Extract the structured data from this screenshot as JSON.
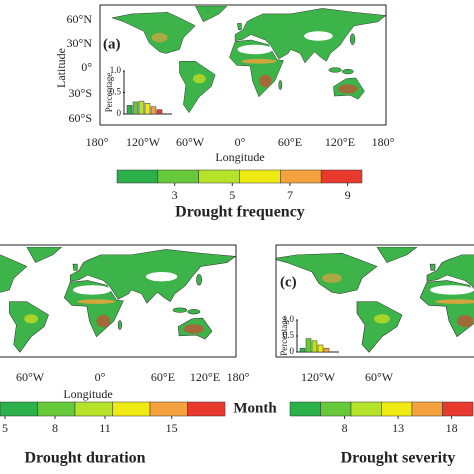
{
  "panels": [
    {
      "label": "(a)",
      "y_axis_label": "Latitude",
      "x_axis_label": "Longitude",
      "y_ticks": [
        "60°N",
        "30°N",
        "0°",
        "30°S",
        "60°S"
      ],
      "x_ticks": [
        "180°",
        "120°W",
        "60°W",
        "0°",
        "60°E",
        "120°E",
        "180°"
      ],
      "inset": {
        "y_axis_label": "Percentage",
        "ylim": [
          0,
          1
        ],
        "yticks": [
          {
            "value": 1,
            "label": "1.0"
          },
          0.5,
          0
        ],
        "values": [
          0.2,
          0.28,
          0.3,
          0.25,
          0.17,
          0.1
        ]
      },
      "colorbar": {
        "lim": [
          1,
          9.5
        ],
        "ticks": [
          3,
          5,
          7,
          9
        ],
        "title": "Drought frequency",
        "colors": [
          "#2bb04a",
          "#66c93a",
          "#b5e32a",
          "#eeea12",
          "#f5a23c",
          "#e8392f"
        ]
      }
    },
    {
      "x_axis_label": "Longitude",
      "x_ticks": [
        "60°W",
        "0°",
        "60°E",
        "120°E",
        "180°"
      ],
      "colorbar": {
        "lim": [
          4.7,
          18.2
        ],
        "ticks": [
          5,
          8,
          11,
          15
        ],
        "unit": "Month",
        "title": "Drought duration",
        "colors": [
          "#2bb04a",
          "#66c93a",
          "#b5e32a",
          "#eeea12",
          "#f5a23c",
          "#e8392f"
        ]
      }
    },
    {
      "label": "(c)",
      "x_ticks": [
        "120°W",
        "60°W"
      ],
      "inset": {
        "y_axis_label": "Percentage",
        "ylim": [
          0,
          1
        ],
        "yticks": [
          {
            "value": 1,
            "label": "1.0"
          },
          0.5,
          0
        ],
        "values": [
          0.12,
          0.42,
          0.35,
          0.22,
          0.12
        ]
      },
      "colorbar": {
        "lim": [
          2.9,
          20
        ],
        "ticks": [
          8,
          13,
          18
        ],
        "title": "Drought severity",
        "colors": [
          "#2bb04a",
          "#66c93a",
          "#b5e32a",
          "#eeea12",
          "#f5a23c",
          "#e8392f"
        ]
      }
    }
  ]
}
